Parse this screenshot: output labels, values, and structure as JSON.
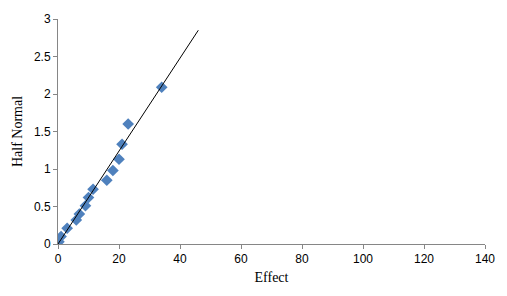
{
  "chart_data": {
    "type": "scatter",
    "xlabel": "Effect",
    "ylabel": "Half Normal",
    "xlim": [
      0,
      140
    ],
    "xticks": [
      0,
      20,
      40,
      60,
      80,
      100,
      120,
      140
    ],
    "ylim": [
      0,
      3
    ],
    "yticks": [
      0,
      0.5,
      1,
      1.5,
      2,
      2.5,
      3
    ],
    "grid": false,
    "series": [
      {
        "type": "scatter",
        "color": "#4f81bd",
        "marker": "diamond",
        "x": [
          0.3,
          1,
          3,
          6,
          7,
          9,
          10,
          11.5,
          16,
          18,
          20,
          21,
          23,
          34
        ],
        "values": [
          0.03,
          0.1,
          0.21,
          0.32,
          0.4,
          0.51,
          0.62,
          0.73,
          0.85,
          0.98,
          1.13,
          1.33,
          1.6,
          2.09
        ]
      },
      {
        "type": "line",
        "color": "#000000",
        "line_style": "solid",
        "x": [
          0,
          46
        ],
        "values": [
          0,
          2.85
        ]
      }
    ]
  }
}
